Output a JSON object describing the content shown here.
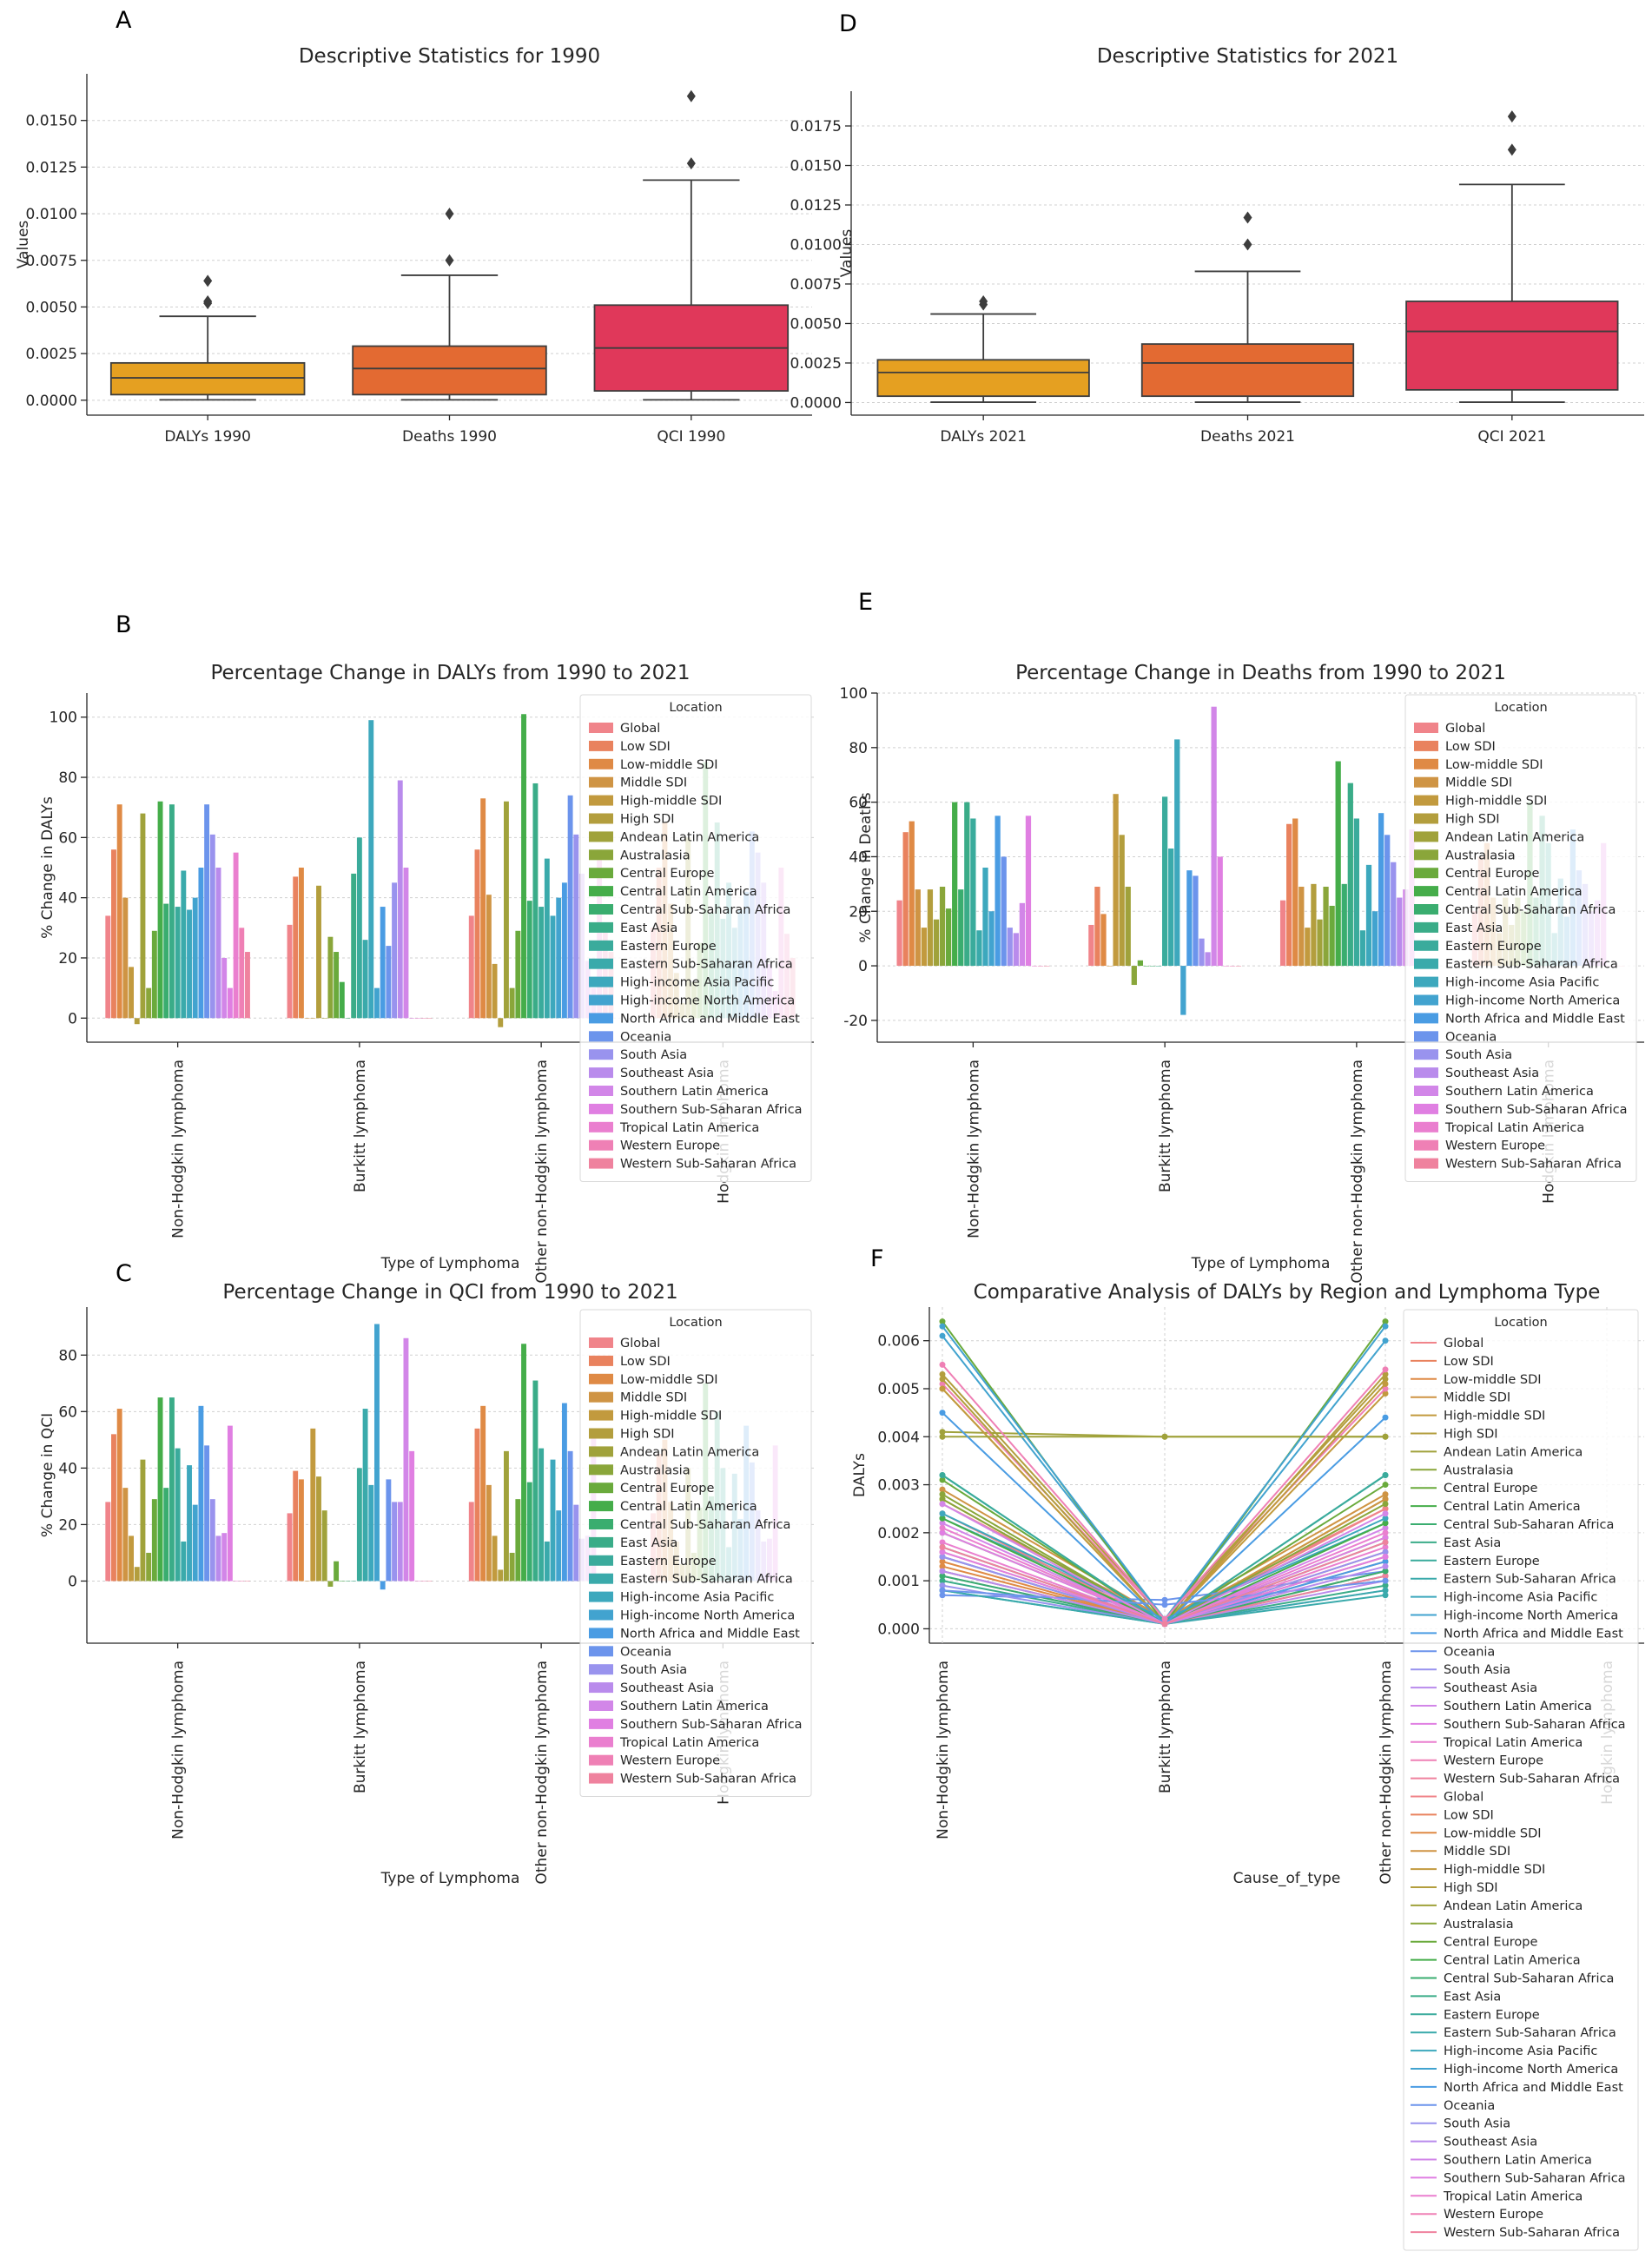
{
  "panels": {
    "A": "A",
    "B": "B",
    "C": "C",
    "D": "D",
    "E": "E",
    "F": "F"
  },
  "legend_title": "Location",
  "locations": [
    "Global",
    "Low SDI",
    "Low-middle SDI",
    "Middle SDI",
    "High-middle SDI",
    "High SDI",
    "Andean Latin America",
    "Australasia",
    "Central Europe",
    "Central Latin America",
    "Central Sub-Saharan Africa",
    "East Asia",
    "Eastern Europe",
    "Eastern Sub-Saharan Africa",
    "High-income Asia Pacific",
    "High-income North America",
    "North Africa and Middle East",
    "Oceania",
    "South Asia",
    "Southeast Asia",
    "Southern Latin America",
    "Southern Sub-Saharan Africa",
    "Tropical Latin America",
    "Western Europe",
    "Western Sub-Saharan Africa"
  ],
  "location_colors": [
    "#f0848a",
    "#e9825e",
    "#df8a45",
    "#cf9444",
    "#c29a3e",
    "#b39e3d",
    "#a0a23b",
    "#8aa63a",
    "#6aaa3c",
    "#45ad4a",
    "#3aad6f",
    "#3aac88",
    "#3aab9c",
    "#3aaaab",
    "#3da8bd",
    "#42a3cf",
    "#4a9ce3",
    "#6c94ec",
    "#9993ee",
    "#b98bec",
    "#d286e8",
    "#e07fe2",
    "#ea7fcf",
    "#ef80b5",
    "#ef829e"
  ],
  "chart_data": [
    {
      "id": "A",
      "type": "box",
      "title": "Descriptive Statistics for 1990",
      "xlabel": "",
      "ylabel": "Values",
      "ylim": [
        -0.0008,
        0.0175
      ],
      "yticks": [
        0.0,
        0.0025,
        0.005,
        0.0075,
        0.01,
        0.0125,
        0.015
      ],
      "ytick_labels": [
        "0.0000",
        "0.0025",
        "0.0050",
        "0.0075",
        "0.0100",
        "0.0125",
        "0.0150"
      ],
      "categories": [
        "DALYs 1990",
        "Deaths 1990",
        "QCI 1990"
      ],
      "colors": [
        "#e5a021",
        "#e36a32",
        "#e0385a"
      ],
      "boxes": [
        {
          "whislo": 2e-05,
          "q1": 0.0003,
          "med": 0.0012,
          "q3": 0.002,
          "whishi": 0.0045,
          "fliers": [
            0.0052,
            0.0053,
            0.0064
          ]
        },
        {
          "whislo": 2e-05,
          "q1": 0.0003,
          "med": 0.0017,
          "q3": 0.0029,
          "whishi": 0.0067,
          "fliers": [
            0.0075,
            0.01
          ]
        },
        {
          "whislo": 2e-05,
          "q1": 0.0005,
          "med": 0.0028,
          "q3": 0.0051,
          "whishi": 0.0118,
          "fliers": [
            0.0127,
            0.0163
          ]
        }
      ]
    },
    {
      "id": "D",
      "type": "box",
      "title": "Descriptive Statistics for 2021",
      "xlabel": "",
      "ylabel": "Values",
      "ylim": [
        -0.0008,
        0.0197
      ],
      "yticks": [
        0.0,
        0.0025,
        0.005,
        0.0075,
        0.01,
        0.0125,
        0.015,
        0.0175
      ],
      "ytick_labels": [
        "0.0000",
        "0.0025",
        "0.0050",
        "0.0075",
        "0.0100",
        "0.0125",
        "0.0150",
        "0.0175"
      ],
      "categories": [
        "DALYs 2021",
        "Deaths 2021",
        "QCI 2021"
      ],
      "colors": [
        "#e5a021",
        "#e36a32",
        "#e0385a"
      ],
      "boxes": [
        {
          "whislo": 2e-05,
          "q1": 0.0004,
          "med": 0.0019,
          "q3": 0.0027,
          "whishi": 0.0056,
          "fliers": [
            0.0062,
            0.0064
          ]
        },
        {
          "whislo": 2e-05,
          "q1": 0.0004,
          "med": 0.0025,
          "q3": 0.0037,
          "whishi": 0.0083,
          "fliers": [
            0.01,
            0.0117
          ]
        },
        {
          "whislo": 2e-05,
          "q1": 0.0008,
          "med": 0.0045,
          "q3": 0.0064,
          "whishi": 0.0138,
          "fliers": [
            0.016,
            0.0181
          ]
        }
      ]
    },
    {
      "id": "B",
      "type": "bar",
      "title": "Percentage Change in DALYs from 1990 to 2021",
      "xlabel": "Type of Lymphoma",
      "ylabel": "% Change in DALYs",
      "ylim": [
        -8,
        108
      ],
      "yticks": [
        0,
        20,
        40,
        60,
        80,
        100
      ],
      "categories": [
        "Non-Hodgkin lymphoma",
        "Burkitt lymphoma",
        "Other non-Hodgkin lymphoma",
        "Hodgkin lymphoma"
      ],
      "series_values": [
        [
          34,
          56,
          71,
          40,
          17,
          -2,
          68,
          10,
          29,
          72,
          38,
          71,
          37,
          49,
          36,
          40,
          50,
          71,
          61,
          50,
          20,
          10,
          55,
          30,
          22
        ],
        [
          31,
          47,
          50,
          0,
          0,
          44,
          0,
          27,
          22,
          12,
          0,
          48,
          60,
          26,
          99,
          10,
          37,
          24,
          45,
          79,
          50,
          0,
          0,
          0,
          0
        ],
        [
          34,
          56,
          73,
          41,
          18,
          -3,
          72,
          10,
          29,
          101,
          39,
          78,
          37,
          53,
          34,
          40,
          45,
          74,
          61,
          48,
          19,
          10,
          56,
          30,
          22
        ],
        [
          30,
          50,
          65,
          38,
          15,
          5,
          60,
          12,
          25,
          85,
          35,
          65,
          33,
          45,
          30,
          36,
          42,
          62,
          55,
          45,
          18,
          9,
          50,
          28,
          20
        ]
      ]
    },
    {
      "id": "E",
      "type": "bar",
      "title": "Percentage Change in Deaths from 1990 to 2021",
      "xlabel": "Type of Lymphoma",
      "ylabel": "% Change in Deaths",
      "ylim": [
        -28,
        100
      ],
      "yticks": [
        -20,
        0,
        20,
        40,
        60,
        80,
        100
      ],
      "categories": [
        "Non-Hodgkin lymphoma",
        "Burkitt lymphoma",
        "Other non-Hodgkin lymphoma",
        "Hodgkin lymphoma"
      ],
      "series_values": [
        [
          24,
          49,
          53,
          28,
          14,
          28,
          17,
          29,
          21,
          60,
          28,
          60,
          54,
          13,
          36,
          20,
          55,
          40,
          14,
          12,
          23,
          55,
          0,
          0,
          0
        ],
        [
          15,
          29,
          19,
          0,
          63,
          48,
          29,
          -7,
          2,
          0,
          0,
          0,
          62,
          43,
          83,
          -18,
          35,
          33,
          10,
          5,
          95,
          40,
          0,
          0,
          0
        ],
        [
          24,
          52,
          54,
          29,
          14,
          30,
          17,
          29,
          22,
          75,
          30,
          67,
          54,
          13,
          37,
          20,
          56,
          48,
          38,
          25,
          28,
          50,
          0,
          0,
          0
        ],
        [
          20,
          40,
          45,
          25,
          12,
          25,
          15,
          25,
          20,
          60,
          25,
          55,
          45,
          12,
          32,
          18,
          50,
          35,
          30,
          20,
          24,
          45,
          0,
          0,
          0
        ]
      ]
    },
    {
      "id": "C",
      "type": "bar",
      "title": "Percentage Change in QCI from 1990 to 2021",
      "xlabel": "Type of Lymphoma",
      "ylabel": "% Change in QCI",
      "ylim": [
        -22,
        97
      ],
      "yticks": [
        0,
        20,
        40,
        60,
        80
      ],
      "categories": [
        "Non-Hodgkin lymphoma",
        "Burkitt lymphoma",
        "Other non-Hodgkin lymphoma",
        "Hodgkin lymphoma"
      ],
      "series_values": [
        [
          28,
          52,
          61,
          33,
          16,
          5,
          43,
          10,
          29,
          65,
          33,
          65,
          47,
          14,
          41,
          27,
          62,
          48,
          29,
          16,
          17,
          55,
          0,
          0,
          0
        ],
        [
          24,
          39,
          36,
          0,
          54,
          37,
          25,
          -2,
          7,
          0,
          0,
          0,
          40,
          61,
          34,
          91,
          -3,
          36,
          28,
          28,
          86,
          46,
          0,
          0,
          0
        ],
        [
          28,
          54,
          62,
          34,
          16,
          4,
          46,
          10,
          29,
          84,
          35,
          71,
          47,
          14,
          43,
          25,
          63,
          46,
          27,
          15,
          16,
          52,
          0,
          0,
          0
        ],
        [
          24,
          45,
          50,
          28,
          14,
          6,
          40,
          10,
          26,
          70,
          30,
          60,
          40,
          12,
          38,
          22,
          55,
          42,
          25,
          14,
          15,
          48,
          0,
          0,
          0
        ]
      ]
    },
    {
      "id": "F",
      "type": "line",
      "title": "Comparative Analysis of DALYs by Region and Lymphoma Type",
      "xlabel": "Cause_of_type",
      "ylabel": "DALYs",
      "ylim": [
        -0.0003,
        0.0067
      ],
      "yticks": [
        0.0,
        0.001,
        0.002,
        0.003,
        0.004,
        0.005,
        0.006
      ],
      "ytick_labels": [
        "0.000",
        "0.001",
        "0.002",
        "0.003",
        "0.004",
        "0.005",
        "0.006"
      ],
      "categories": [
        "Non-Hodgkin lymphoma",
        "Burkitt lymphoma",
        "Other non-Hodgkin lymphoma",
        "Hodgkin lymphoma"
      ],
      "series_1990": [
        [
          0.0026,
          0.0002,
          0.0025
        ],
        [
          0.0015,
          0.0001,
          0.0014
        ],
        [
          0.0013,
          0.0001,
          0.0012
        ],
        [
          0.0029,
          0.0002,
          0.0028
        ],
        [
          0.005,
          0.0001,
          0.0049
        ],
        [
          0.0053,
          0.0002,
          0.0052
        ],
        [
          0.0041,
          0.004,
          0.004
        ],
        [
          0.0028,
          0.0001,
          0.0027
        ],
        [
          0.0031,
          0.0001,
          0.003
        ],
        [
          0.002,
          0.0001,
          0.0019
        ],
        [
          0.0012,
          0.0001,
          0.0011
        ],
        [
          0.001,
          0.0001,
          0.0009
        ],
        [
          0.0032,
          0.0001,
          0.0032
        ],
        [
          0.0008,
          0.0001,
          0.0007
        ],
        [
          0.0023,
          0.0002,
          0.0022
        ],
        [
          0.0061,
          0.0002,
          0.006
        ],
        [
          0.0015,
          0.0001,
          0.0014
        ],
        [
          0.0007,
          0.0006,
          0.0012
        ],
        [
          0.0009,
          0.0001,
          0.0008
        ],
        [
          0.0011,
          0.0001,
          0.001
        ],
        [
          0.0022,
          0.0001,
          0.0021
        ],
        [
          0.002,
          0.0001,
          0.0019
        ],
        [
          0.0018,
          0.0001,
          0.0017
        ],
        [
          0.0051,
          0.0002,
          0.005
        ],
        [
          0.0012,
          0.0001,
          0.0011
        ]
      ],
      "series_2021": [
        [
          0.0024,
          0.0001,
          0.0025
        ],
        [
          0.0016,
          0.0001,
          0.0016
        ],
        [
          0.0014,
          0.0001,
          0.0015
        ],
        [
          0.0027,
          0.0001,
          0.0027
        ],
        [
          0.005,
          0.0001,
          0.0051
        ],
        [
          0.0052,
          0.0001,
          0.0053
        ],
        [
          0.004,
          0.004,
          0.004
        ],
        [
          0.0027,
          0.0001,
          0.0026
        ],
        [
          0.0064,
          0.0001,
          0.0064
        ],
        [
          0.0023,
          0.0001,
          0.0022
        ],
        [
          0.0011,
          0.0001,
          0.0012
        ],
        [
          0.0017,
          0.0001,
          0.0018
        ],
        [
          0.0032,
          0.0001,
          0.0032
        ],
        [
          0.0008,
          0.0001,
          0.0008
        ],
        [
          0.0024,
          0.0002,
          0.0023
        ],
        [
          0.0063,
          0.0002,
          0.0063
        ],
        [
          0.0045,
          0.0001,
          0.0044
        ],
        [
          0.0008,
          0.0005,
          0.001
        ],
        [
          0.0015,
          0.0001,
          0.0016
        ],
        [
          0.0012,
          0.0001,
          0.0013
        ],
        [
          0.0026,
          0.0001,
          0.0024
        ],
        [
          0.0016,
          0.0001,
          0.0015
        ],
        [
          0.0021,
          0.0001,
          0.002
        ],
        [
          0.0055,
          0.0002,
          0.0054
        ],
        [
          0.0017,
          0.0001,
          0.0018
        ]
      ]
    }
  ]
}
